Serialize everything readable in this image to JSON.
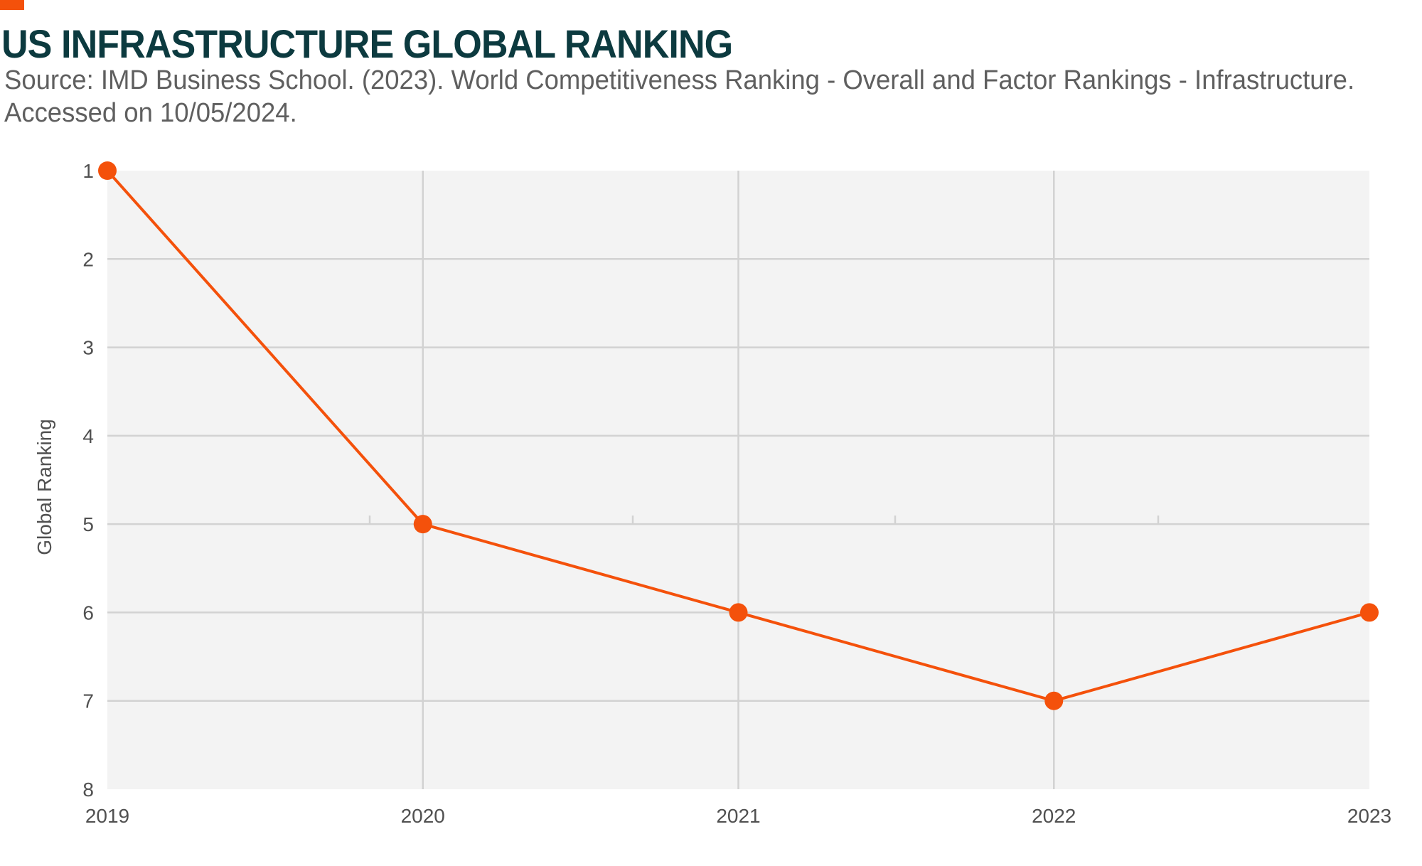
{
  "title": "US INFRASTRUCTURE GLOBAL RANKING",
  "subtitle": "Source: IMD Business School. (2023). World Competitiveness Ranking - Overall and Factor Rankings - Infrastructure. Accessed on 10/05/2024.",
  "colors": {
    "accent": "#f4510b",
    "series": "#f4510b",
    "title": "#0c3a3f",
    "plot_background": "#f3f3f3",
    "gridline": "#d2d2d2",
    "text": "#505050"
  },
  "chart_data": {
    "type": "line",
    "title": "US INFRASTRUCTURE GLOBAL RANKING",
    "xlabel": "",
    "ylabel": "Global Ranking",
    "x": [
      "2019",
      "2020",
      "2021",
      "2022",
      "2023"
    ],
    "series": [
      {
        "values": [
          1,
          5,
          6,
          7,
          6
        ]
      }
    ],
    "ylim": [
      1,
      8
    ],
    "y_inverted": true,
    "yticks": [
      1,
      2,
      3,
      4,
      5,
      6,
      7,
      8
    ],
    "grid": true,
    "legend": "none",
    "markers": "circle"
  }
}
